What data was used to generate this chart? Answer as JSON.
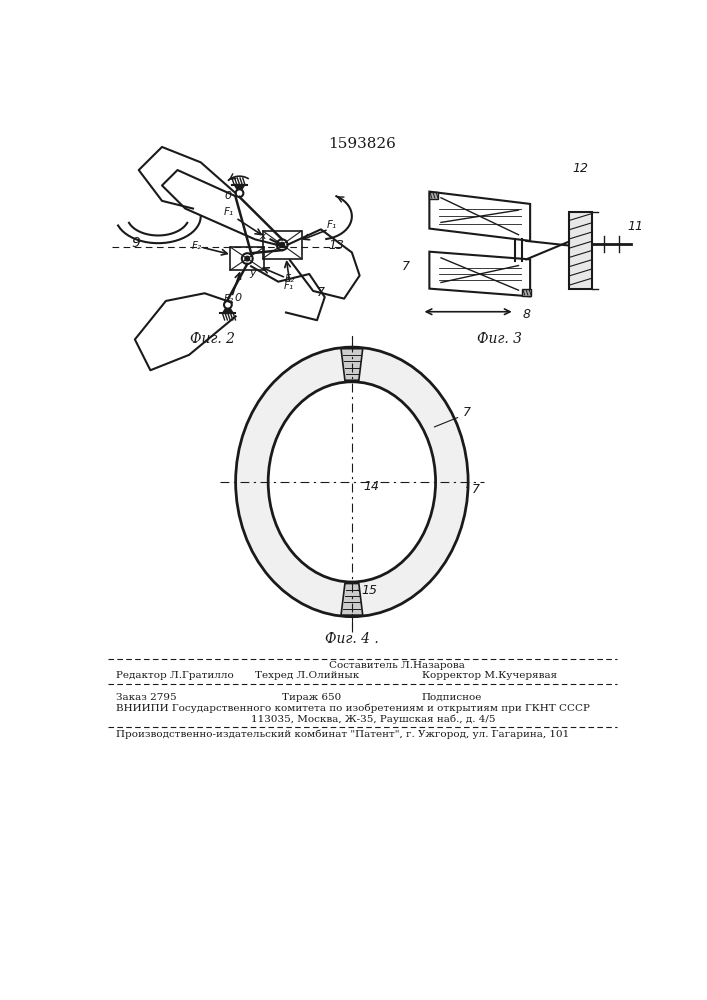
{
  "patent_number": "1593826",
  "fig2_label": "Фиг. 2",
  "fig3_label": "Фиг. 3",
  "fig4_label": "Фиг. 4 .",
  "footer_line1_col1": "Редактор Л.Гратилло",
  "footer_line1_col2": "Составитель Л.Назарова",
  "footer_line1_col2b": "Техред Л.Олийнык",
  "footer_line1_col3": "Корректор М.Кучерявая",
  "footer_line2_col1": "Заказ 2795",
  "footer_line2_col2": "Тираж 650",
  "footer_line2_col3": "Подписное",
  "footer_line3": "ВНИИПИ Государственного комитета по изобретениям и открытиям при ГКНТ СССР",
  "footer_line4": "113035, Москва, Ж-35, Раушская наб., д. 4/5",
  "footer_line5": "Производственно-издательский комбинат \"Патент\", г. Ужгород, ул. Гагарина, 101",
  "bg_color": "#ffffff",
  "line_color": "#1a1a1a"
}
